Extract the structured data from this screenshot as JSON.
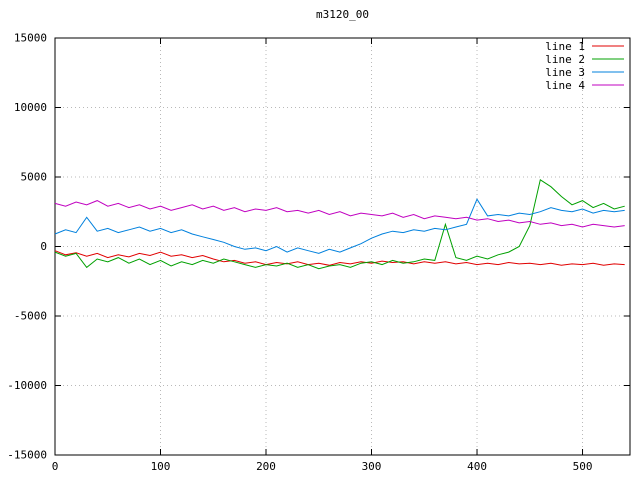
{
  "chart_data": {
    "type": "line",
    "title": "m3120_00",
    "xlabel": "",
    "ylabel": "",
    "xlim": [
      0,
      545
    ],
    "ylim": [
      -15000,
      15000
    ],
    "xticks": [
      0,
      100,
      200,
      300,
      400,
      500
    ],
    "yticks": [
      -15000,
      -10000,
      -5000,
      0,
      5000,
      10000,
      15000
    ],
    "grid": true,
    "grid_color": "#b9b9b9",
    "border_color": "#000000",
    "legend_position": "top-right-inside",
    "x": [
      0,
      10,
      20,
      30,
      40,
      50,
      60,
      70,
      80,
      90,
      100,
      110,
      120,
      130,
      140,
      150,
      160,
      170,
      180,
      190,
      200,
      210,
      220,
      230,
      240,
      250,
      260,
      270,
      280,
      290,
      300,
      310,
      320,
      330,
      340,
      350,
      360,
      370,
      380,
      390,
      400,
      410,
      420,
      430,
      440,
      450,
      460,
      470,
      480,
      490,
      500,
      510,
      520,
      530,
      540
    ],
    "series": [
      {
        "name": "line 1",
        "color": "#e00000",
        "values": [
          -300,
          -600,
          -450,
          -700,
          -500,
          -800,
          -600,
          -750,
          -500,
          -650,
          -400,
          -700,
          -600,
          -800,
          -650,
          -900,
          -1100,
          -1000,
          -1200,
          -1100,
          -1300,
          -1150,
          -1250,
          -1100,
          -1300,
          -1200,
          -1350,
          -1150,
          -1250,
          -1100,
          -1200,
          -1050,
          -1150,
          -1100,
          -1250,
          -1100,
          -1200,
          -1100,
          -1250,
          -1150,
          -1300,
          -1200,
          -1300,
          -1150,
          -1250,
          -1200,
          -1300,
          -1200,
          -1350,
          -1250,
          -1300,
          -1200,
          -1350,
          -1250,
          -1300
        ]
      },
      {
        "name": "line 2",
        "color": "#00a000",
        "values": [
          -400,
          -700,
          -500,
          -1500,
          -900,
          -1100,
          -800,
          -1200,
          -900,
          -1300,
          -1000,
          -1400,
          -1100,
          -1300,
          -1000,
          -1200,
          -900,
          -1100,
          -1300,
          -1500,
          -1300,
          -1400,
          -1200,
          -1500,
          -1300,
          -1600,
          -1400,
          -1300,
          -1500,
          -1200,
          -1100,
          -1300,
          -1000,
          -1200,
          -1100,
          -900,
          -1000,
          1600,
          -800,
          -1000,
          -700,
          -900,
          -600,
          -400,
          0,
          1500,
          4800,
          4300,
          3600,
          3000,
          3300,
          2800,
          3100,
          2700,
          2900
        ]
      },
      {
        "name": "line 3",
        "color": "#0080dd",
        "values": [
          900,
          1200,
          1000,
          2100,
          1100,
          1300,
          1000,
          1200,
          1400,
          1100,
          1300,
          1000,
          1200,
          900,
          700,
          500,
          300,
          0,
          -200,
          -100,
          -300,
          0,
          -400,
          -100,
          -300,
          -500,
          -200,
          -400,
          -100,
          200,
          600,
          900,
          1100,
          1000,
          1200,
          1100,
          1300,
          1200,
          1400,
          1600,
          3400,
          2200,
          2300,
          2200,
          2400,
          2300,
          2500,
          2800,
          2600,
          2500,
          2700,
          2400,
          2600,
          2500,
          2600
        ]
      },
      {
        "name": "line 4",
        "color": "#c000c0",
        "values": [
          3100,
          2900,
          3200,
          3000,
          3300,
          2900,
          3100,
          2800,
          3000,
          2700,
          2900,
          2600,
          2800,
          3000,
          2700,
          2900,
          2600,
          2800,
          2500,
          2700,
          2600,
          2800,
          2500,
          2600,
          2400,
          2600,
          2300,
          2500,
          2200,
          2400,
          2300,
          2200,
          2400,
          2100,
          2300,
          2000,
          2200,
          2100,
          2000,
          2100,
          1900,
          2000,
          1800,
          1900,
          1700,
          1800,
          1600,
          1700,
          1500,
          1600,
          1400,
          1600,
          1500,
          1400,
          1500
        ]
      }
    ]
  }
}
